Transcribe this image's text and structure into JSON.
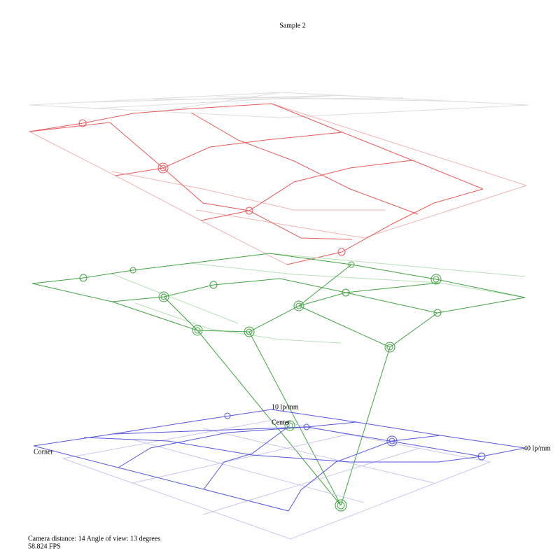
{
  "title": "Sample 2",
  "labels": {
    "top": "10 lp/mm",
    "center": "Center",
    "right": "40 lp/mm",
    "corner": "Corner"
  },
  "status": {
    "camera": "Camera distance: 14 Angle of view: 13 degrees",
    "fps": "58.824 FPS"
  }
}
